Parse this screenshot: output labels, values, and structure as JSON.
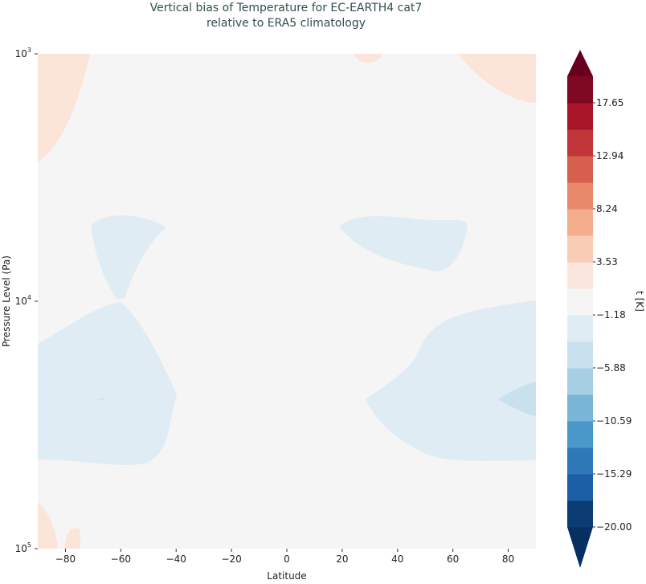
{
  "chart_data": {
    "type": "heatmap",
    "subtype": "filled-contour",
    "title_line1": "Vertical bias of Temperature for EC-EARTH4 cat7",
    "title_line2": "relative to ERA5 climatology",
    "xlabel": "Latitude",
    "ylabel": "Pressure Level (Pa)",
    "xlim": [
      -90,
      90
    ],
    "ylim": [
      100000,
      1000
    ],
    "yscale": "log",
    "x_ticks": [
      -80,
      -60,
      -40,
      -20,
      0,
      20,
      40,
      60,
      80
    ],
    "y_ticks": [
      {
        "base": "10",
        "exp": "3",
        "value": 1000
      },
      {
        "base": "10",
        "exp": "4",
        "value": 10000
      },
      {
        "base": "10",
        "exp": "5",
        "value": 100000
      }
    ],
    "colorbar": {
      "label": "t [K]",
      "vmin": -20,
      "vmax": 20,
      "extend": "both",
      "tick_labels": [
        "−20.00",
        "−15.29",
        "−10.59",
        "−5.88",
        "−1.18",
        "3.53",
        "8.24",
        "12.94",
        "17.65"
      ],
      "tick_values": [
        -20,
        -15.29,
        -10.59,
        -5.88,
        -1.18,
        3.53,
        8.24,
        12.94,
        17.65
      ],
      "colors": [
        "#0b3c73",
        "#1c5ea6",
        "#2e78b7",
        "#4a98c9",
        "#79b5d6",
        "#a6cfe4",
        "#c9e1ee",
        "#e0ecf4",
        "#f5f5f5",
        "#fae6dc",
        "#f9cdb5",
        "#f4ad8d",
        "#e8896b",
        "#d6604d",
        "#c13639",
        "#a81529",
        "#7f0823"
      ],
      "under_color": "#053061",
      "over_color": "#67001f"
    },
    "background_color": "#f5f5f5"
  }
}
